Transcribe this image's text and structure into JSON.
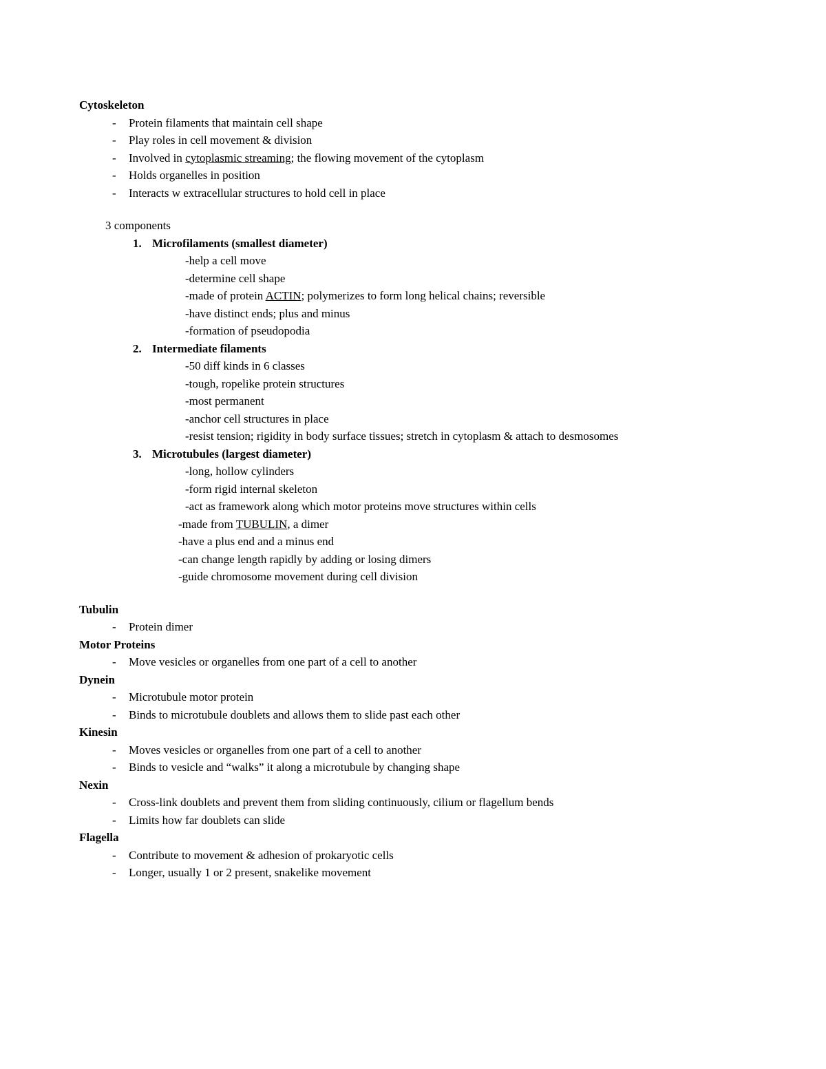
{
  "cytoskeleton": {
    "title": "Cytoskeleton",
    "bullets": [
      "Protein filaments that maintain cell shape",
      "Play roles in cell movement & division",
      {
        "pre": "Involved in ",
        "u": "cytoplasmic streaming",
        "post": "; the flowing movement of the cytoplasm"
      },
      "Holds organelles in position",
      "Interacts w extracellular structures to hold cell in place"
    ],
    "components_header": "3 components",
    "components": [
      {
        "num": "1.",
        "title": "Microfilaments (smallest diameter)",
        "subs": [
          "-help a cell move",
          "-determine cell shape",
          {
            "pre": "-made of protein ",
            "u": "ACTIN",
            "post": "; polymerizes to form long helical chains; reversible"
          },
          "-have distinct ends; plus and minus",
          "-formation of pseudopodia"
        ]
      },
      {
        "num": "2.",
        "title": "Intermediate filaments",
        "subs": [
          "-50 diff kinds in 6 classes",
          "-tough, ropelike protein structures",
          "-most permanent",
          "-anchor cell structures in place",
          "-resist tension; rigidity in body surface tissues; stretch in cytoplasm & attach to desmosomes"
        ]
      },
      {
        "num": "3.",
        "title": "Microtubules (largest diameter)",
        "subs_a": [
          "-long, hollow cylinders",
          "-form rigid internal skeleton",
          "-act as framework along which motor proteins move structures within cells"
        ],
        "subs_b": [
          {
            "pre": "-made from ",
            "u": "TUBULIN",
            "post": ", a dimer"
          },
          "-have a plus end and a minus end",
          "-can change length rapidly by adding or losing dimers",
          "-guide chromosome movement during cell division"
        ]
      }
    ]
  },
  "terms": [
    {
      "title": "Tubulin",
      "bullets": [
        "Protein dimer"
      ]
    },
    {
      "title": "Motor Proteins",
      "bullets": [
        "Move vesicles or organelles from one part of a cell to another"
      ]
    },
    {
      "title": "Dynein",
      "bullets": [
        "Microtubule motor protein",
        "Binds to microtubule doublets and allows them to slide past each other"
      ]
    },
    {
      "title": "Kinesin",
      "bullets": [
        "Moves vesicles or organelles from one part of a cell to another",
        "Binds to vesicle and “walks” it along a microtubule by changing shape"
      ]
    },
    {
      "title": "Nexin",
      "bullets": [
        "Cross-link doublets and prevent them from sliding continuously, cilium or flagellum bends",
        "Limits how far doublets can slide"
      ]
    },
    {
      "title": "Flagella",
      "bullets": [
        "Contribute to movement & adhesion of prokaryotic cells",
        "Longer, usually 1 or 2 present, snakelike movement"
      ]
    }
  ]
}
